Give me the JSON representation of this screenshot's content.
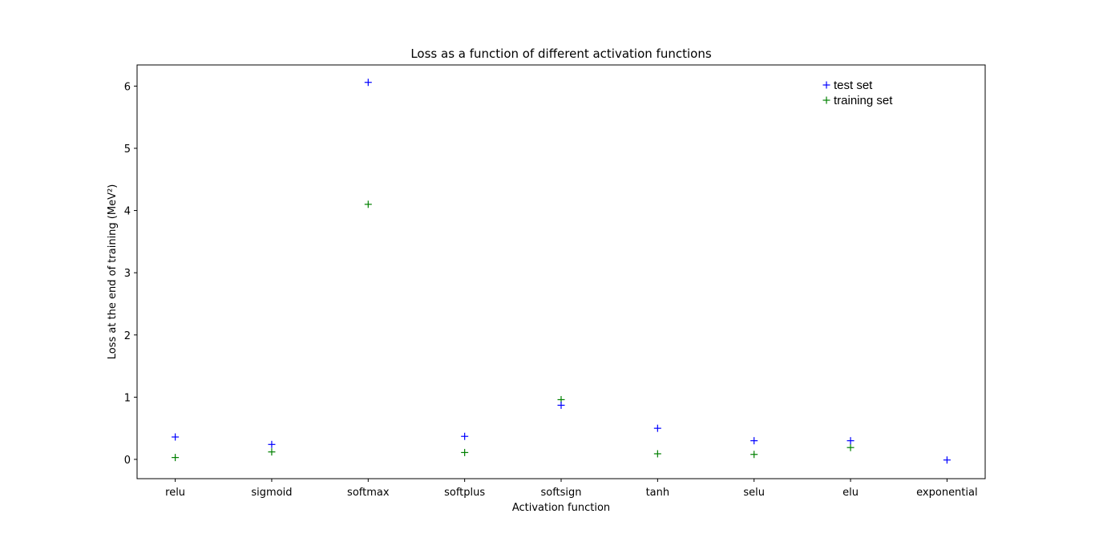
{
  "chart_data": {
    "type": "scatter",
    "title": "Loss as a function of different activation functions",
    "xlabel": "Activation function",
    "ylabel": "Loss at the end of training (MeV²)",
    "categories": [
      "relu",
      "sigmoid",
      "softmax",
      "softplus",
      "softsign",
      "tanh",
      "selu",
      "elu",
      "exponential"
    ],
    "ylim": [
      -0.31,
      6.34
    ],
    "yticks": [
      0,
      1,
      2,
      3,
      4,
      5,
      6
    ],
    "grid": false,
    "legend": "top-right",
    "marker": "+",
    "series": [
      {
        "name": "test set",
        "color": "#0000ff",
        "values": [
          0.36,
          0.24,
          6.06,
          0.37,
          0.87,
          0.5,
          0.3,
          0.3,
          -0.01
        ]
      },
      {
        "name": "training set",
        "color": "#008000",
        "values": [
          0.03,
          0.12,
          4.1,
          0.11,
          0.96,
          0.09,
          0.08,
          0.19,
          null
        ]
      }
    ]
  }
}
